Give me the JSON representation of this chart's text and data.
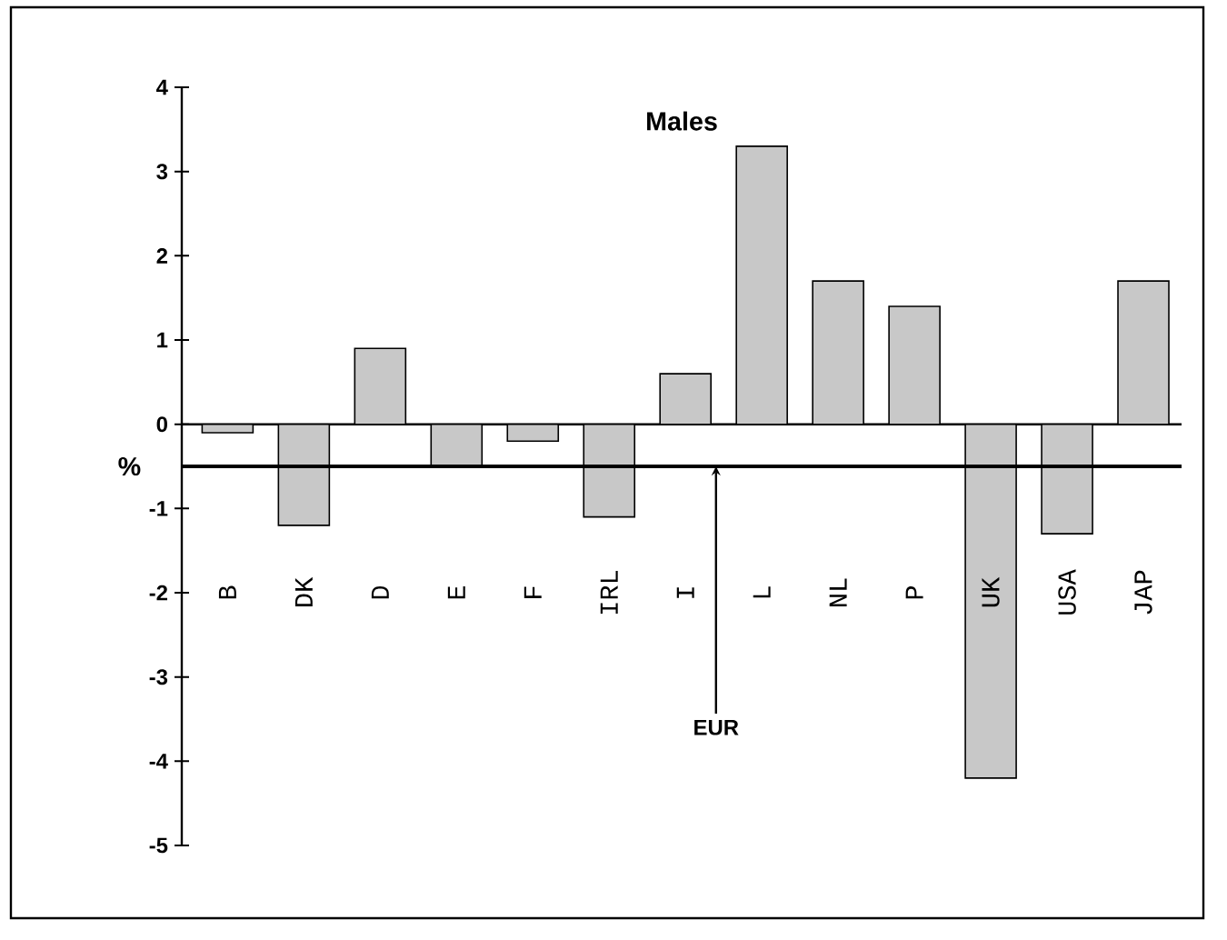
{
  "chart_data": {
    "type": "bar",
    "title": "Males",
    "ylabel": "%",
    "categories": [
      "B",
      "DK",
      "D",
      "E",
      "F",
      "IRL",
      "I",
      "L",
      "NL",
      "P",
      "UK",
      "USA",
      "JAP"
    ],
    "values": [
      -0.1,
      -1.2,
      0.9,
      -0.5,
      -0.2,
      -1.1,
      0.6,
      3.3,
      1.7,
      1.4,
      -4.2,
      -1.3,
      1.7
    ],
    "color": "#c8c8c8",
    "ylim": [
      -5,
      4
    ],
    "yticks": [
      -5,
      -4,
      -3,
      -2,
      -1,
      0,
      1,
      2,
      3,
      4
    ],
    "ref_lines": [
      {
        "axis": "y",
        "value": -0.5,
        "label": "EUR"
      }
    ]
  }
}
